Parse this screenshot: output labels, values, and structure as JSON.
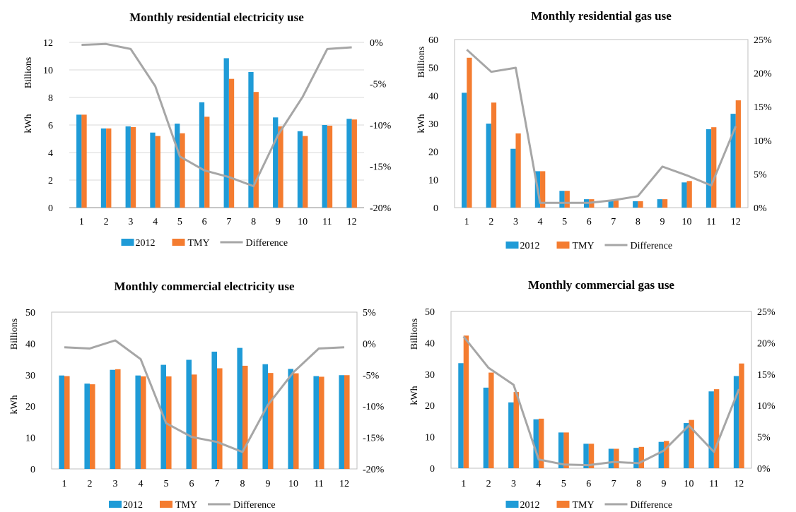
{
  "colors": {
    "c2012": "#1f9bd7",
    "ctmy": "#f47c30",
    "cdiff": "#a6a6a6",
    "grid": "#d9d9d9"
  },
  "chart_data": [
    {
      "type": "bar",
      "title": "Monthly residential electricity use",
      "ylabel": "kWh",
      "yunit": "Billions",
      "categories": [
        "1",
        "2",
        "3",
        "4",
        "5",
        "6",
        "7",
        "8",
        "9",
        "10",
        "11",
        "12"
      ],
      "series": [
        {
          "name": "2012",
          "type": "bar",
          "values": [
            6.75,
            5.75,
            5.9,
            5.45,
            6.1,
            7.65,
            10.85,
            9.85,
            6.55,
            5.55,
            6.0,
            6.45
          ]
        },
        {
          "name": "TMY",
          "type": "bar",
          "values": [
            6.75,
            5.75,
            5.85,
            5.2,
            5.4,
            6.6,
            9.35,
            8.4,
            5.9,
            5.2,
            5.95,
            6.4
          ]
        },
        {
          "name": "Difference",
          "type": "line",
          "axis": "right",
          "values": [
            -0.3,
            -0.2,
            -0.8,
            -5.3,
            -13.8,
            -15.5,
            -16.3,
            -17.4,
            -11.2,
            -6.6,
            -0.8,
            -0.6
          ]
        }
      ],
      "ylim": [
        0,
        12
      ],
      "yticks": [
        "0",
        "2",
        "4",
        "6",
        "8",
        "10",
        "12"
      ],
      "y2lim": [
        -20,
        0
      ],
      "y2ticks": [
        "-20%",
        "-15%",
        "-10%",
        "-5%",
        "0%"
      ],
      "legend": [
        "2012",
        "TMY",
        "Difference"
      ],
      "legend_position": "bottom",
      "grid": true
    },
    {
      "type": "bar",
      "title": "Monthly residential gas use",
      "ylabel": "kWh",
      "yunit": "Billions",
      "categories": [
        "1",
        "2",
        "3",
        "4",
        "5",
        "6",
        "7",
        "8",
        "9",
        "10",
        "11",
        "12"
      ],
      "series": [
        {
          "name": "2012",
          "type": "bar",
          "values": [
            41,
            30,
            21,
            13,
            6,
            3,
            2.5,
            2.3,
            3,
            9,
            28,
            33.5
          ]
        },
        {
          "name": "TMY",
          "type": "bar",
          "values": [
            53.5,
            37.5,
            26.5,
            13,
            6,
            3,
            2.5,
            2.3,
            3,
            9.5,
            28.7,
            38.3
          ]
        },
        {
          "name": "Difference",
          "type": "line",
          "axis": "right",
          "values": [
            23.5,
            20.2,
            20.8,
            0.7,
            0.7,
            0.7,
            1.1,
            1.7,
            6.1,
            4.8,
            3.3,
            12.1
          ]
        }
      ],
      "ylim": [
        0,
        60
      ],
      "yticks": [
        "0",
        "10",
        "20",
        "30",
        "40",
        "50",
        "60"
      ],
      "y2lim": [
        0,
        25
      ],
      "y2ticks": [
        "0%",
        "5%",
        "10%",
        "15%",
        "20%",
        "25%"
      ],
      "legend": [
        "2012",
        "TMY",
        "Difference"
      ],
      "legend_position": "bottom",
      "grid": false
    },
    {
      "type": "bar",
      "title": "Monthly commercial electricity use",
      "ylabel": "kWh",
      "yunit": "Billions",
      "categories": [
        "1",
        "2",
        "3",
        "4",
        "5",
        "6",
        "7",
        "8",
        "9",
        "10",
        "11",
        "12"
      ],
      "series": [
        {
          "name": "2012",
          "type": "bar",
          "values": [
            29.8,
            27.2,
            31.6,
            29.8,
            33.2,
            34.8,
            37.4,
            38.6,
            33.4,
            31.9,
            29.6,
            29.9
          ]
        },
        {
          "name": "TMY",
          "type": "bar",
          "values": [
            29.6,
            27.0,
            31.8,
            29.5,
            29.5,
            30.1,
            32.1,
            32.9,
            30.6,
            30.5,
            29.4,
            29.9
          ]
        },
        {
          "name": "Difference",
          "type": "line",
          "axis": "right",
          "values": [
            -0.6,
            -0.8,
            0.5,
            -2.5,
            -12.7,
            -14.9,
            -15.7,
            -17.3,
            -9.8,
            -4.6,
            -0.8,
            -0.6
          ]
        }
      ],
      "ylim": [
        0,
        50
      ],
      "yticks": [
        "0",
        "10",
        "20",
        "30",
        "40",
        "50"
      ],
      "y2lim": [
        -20,
        5
      ],
      "y2ticks": [
        "-20%",
        "-15%",
        "-10%",
        "-5%",
        "0%",
        "5%"
      ],
      "legend": [
        "2012",
        "TMY",
        "Difference"
      ],
      "legend_position": "bottom",
      "grid": false
    },
    {
      "type": "bar",
      "title": "Monthly commercial gas use",
      "ylabel": "kWh",
      "yunit": "Billions",
      "categories": [
        "1",
        "2",
        "3",
        "4",
        "5",
        "6",
        "7",
        "8",
        "9",
        "10",
        "11",
        "12"
      ],
      "series": [
        {
          "name": "2012",
          "type": "bar",
          "values": [
            33.5,
            25.7,
            21,
            15.6,
            11.4,
            7.8,
            6.2,
            6.5,
            8.4,
            14.4,
            24.5,
            29.4
          ]
        },
        {
          "name": "TMY",
          "type": "bar",
          "values": [
            42.3,
            30.5,
            24.3,
            15.8,
            11.4,
            7.8,
            6.2,
            6.8,
            8.7,
            15.4,
            25.2,
            33.4
          ]
        },
        {
          "name": "Difference",
          "type": "line",
          "axis": "right",
          "values": [
            21,
            16,
            13.3,
            1.4,
            0.6,
            0.5,
            1,
            0.8,
            2.8,
            6.8,
            2.6,
            12.6
          ]
        }
      ],
      "ylim": [
        0,
        50
      ],
      "yticks": [
        "0",
        "10",
        "20",
        "30",
        "40",
        "50"
      ],
      "y2lim": [
        0,
        25
      ],
      "y2ticks": [
        "0%",
        "5%",
        "10%",
        "15%",
        "20%",
        "25%"
      ],
      "legend": [
        "2012",
        "TMY",
        "Difference"
      ],
      "legend_position": "bottom",
      "grid": false
    }
  ]
}
